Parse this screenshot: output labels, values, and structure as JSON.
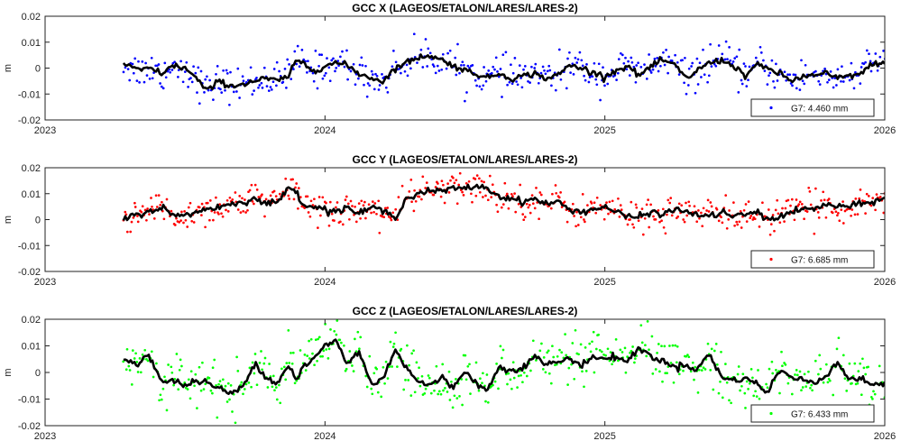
{
  "chart_data": [
    {
      "type": "scatter",
      "title": "GCC X (LAGEOS/ETALON/LARES/LARES-2)",
      "ylabel": "m",
      "xlabel": "",
      "xlim": [
        2023,
        2026
      ],
      "ylim": [
        -0.02,
        0.02
      ],
      "yticks": [
        -0.02,
        -0.01,
        0,
        0.01,
        0.02
      ],
      "ytick_labels": [
        "-0.02",
        "-0.01",
        "0",
        "0.01",
        "0.02"
      ],
      "xticks": [
        2023,
        2024,
        2025,
        2026
      ],
      "xtick_labels": [
        "2023",
        "2024",
        "2025",
        "2026"
      ],
      "legend": "G7: 4.460 mm",
      "legend_position": "bottom-right",
      "point_color": "#0000ff",
      "line_color": "#000000",
      "smooth_line": {
        "x": [
          2023.28,
          2023.33,
          2023.37,
          2023.42,
          2023.46,
          2023.5,
          2023.54,
          2023.58,
          2023.62,
          2023.67,
          2023.71,
          2023.75,
          2023.79,
          2023.83,
          2023.87,
          2023.9,
          2023.92,
          2023.96,
          2024.0,
          2024.04,
          2024.08,
          2024.12,
          2024.17,
          2024.21,
          2024.25,
          2024.29,
          2024.33,
          2024.37,
          2024.42,
          2024.46,
          2024.5,
          2024.54,
          2024.58,
          2024.62,
          2024.67,
          2024.71,
          2024.75,
          2024.79,
          2024.83,
          2024.87,
          2024.92,
          2024.96,
          2025.0,
          2025.04,
          2025.08,
          2025.12,
          2025.17,
          2025.21,
          2025.25,
          2025.29,
          2025.33,
          2025.37,
          2025.42,
          2025.46,
          2025.5,
          2025.54,
          2025.58,
          2025.62,
          2025.67,
          2025.71,
          2025.75,
          2025.79,
          2025.83,
          2025.87,
          2025.92,
          2025.96,
          2026.0
        ],
        "y": [
          0.002,
          -0.001,
          0.0,
          -0.002,
          0.001,
          0.0,
          -0.004,
          -0.009,
          -0.005,
          -0.007,
          -0.006,
          -0.005,
          -0.004,
          -0.005,
          -0.003,
          0.003,
          0.002,
          -0.001,
          0.001,
          0.002,
          0.001,
          -0.002,
          -0.004,
          -0.005,
          0.0,
          0.002,
          0.004,
          0.005,
          0.003,
          0.001,
          -0.001,
          -0.002,
          -0.004,
          -0.002,
          -0.004,
          -0.003,
          -0.002,
          -0.004,
          -0.003,
          0.001,
          0.0,
          -0.002,
          -0.003,
          -0.001,
          0.001,
          -0.003,
          0.001,
          0.003,
          0.001,
          -0.004,
          -0.001,
          0.002,
          0.003,
          0.001,
          -0.003,
          0.001,
          0.0,
          -0.002,
          -0.005,
          -0.003,
          -0.003,
          -0.002,
          -0.004,
          -0.003,
          -0.002,
          0.002,
          0.002
        ]
      },
      "noise_sd": 0.0045,
      "n_points": 520
    },
    {
      "type": "scatter",
      "title": "GCC Y (LAGEOS/ETALON/LARES/LARES-2)",
      "ylabel": "m",
      "xlabel": "",
      "xlim": [
        2023,
        2026
      ],
      "ylim": [
        -0.02,
        0.02
      ],
      "yticks": [
        -0.02,
        -0.01,
        0,
        0.01,
        0.02
      ],
      "ytick_labels": [
        "-0.02",
        "-0.01",
        "0",
        "0.01",
        "0.02"
      ],
      "xticks": [
        2023,
        2024,
        2025,
        2026
      ],
      "xtick_labels": [
        "2023",
        "2024",
        "2025",
        "2026"
      ],
      "legend": "G7: 6.685 mm",
      "legend_position": "bottom-right",
      "point_color": "#ff0000",
      "line_color": "#000000",
      "smooth_line": {
        "x": [
          2023.28,
          2023.33,
          2023.37,
          2023.42,
          2023.46,
          2023.5,
          2023.54,
          2023.58,
          2023.62,
          2023.67,
          2023.71,
          2023.75,
          2023.79,
          2023.83,
          2023.87,
          2023.9,
          2023.92,
          2023.96,
          2024.0,
          2024.04,
          2024.08,
          2024.12,
          2024.17,
          2024.21,
          2024.25,
          2024.29,
          2024.33,
          2024.37,
          2024.42,
          2024.46,
          2024.5,
          2024.54,
          2024.58,
          2024.62,
          2024.67,
          2024.71,
          2024.75,
          2024.79,
          2024.83,
          2024.87,
          2024.92,
          2024.96,
          2025.0,
          2025.04,
          2025.08,
          2025.12,
          2025.17,
          2025.21,
          2025.25,
          2025.29,
          2025.33,
          2025.37,
          2025.42,
          2025.46,
          2025.5,
          2025.54,
          2025.58,
          2025.62,
          2025.67,
          2025.71,
          2025.75,
          2025.79,
          2025.83,
          2025.87,
          2025.92,
          2025.96,
          2026.0
        ],
        "y": [
          0.0,
          0.002,
          0.003,
          0.005,
          0.001,
          0.002,
          0.003,
          0.004,
          0.005,
          0.006,
          0.007,
          0.008,
          0.006,
          0.007,
          0.012,
          0.011,
          0.006,
          0.005,
          0.004,
          0.003,
          0.005,
          0.002,
          0.005,
          0.003,
          0.001,
          0.008,
          0.01,
          0.011,
          0.011,
          0.012,
          0.012,
          0.013,
          0.012,
          0.009,
          0.008,
          0.007,
          0.008,
          0.006,
          0.007,
          0.004,
          0.003,
          0.004,
          0.005,
          0.003,
          0.001,
          0.001,
          0.003,
          0.002,
          0.004,
          0.003,
          0.002,
          0.001,
          0.003,
          0.001,
          0.002,
          0.003,
          0.0,
          0.001,
          0.003,
          0.004,
          0.004,
          0.006,
          0.005,
          0.005,
          0.006,
          0.007,
          0.008
        ]
      },
      "noise_sd": 0.0042,
      "n_points": 560
    },
    {
      "type": "scatter",
      "title": "GCC Z (LAGEOS/ETALON/LARES/LARES-2)",
      "ylabel": "m",
      "xlabel": "",
      "xlim": [
        2023,
        2026
      ],
      "ylim": [
        -0.02,
        0.02
      ],
      "yticks": [
        -0.02,
        -0.01,
        0,
        0.01,
        0.02
      ],
      "ytick_labels": [
        "-0.02",
        "-0.01",
        "0",
        "0.01",
        "0.02"
      ],
      "xticks": [
        2023,
        2024,
        2025,
        2026
      ],
      "xtick_labels": [
        "2023",
        "2024",
        "2025",
        "2026"
      ],
      "legend": "G7: 6.433 mm",
      "legend_position": "bottom-right",
      "point_color": "#00ff00",
      "line_color": "#000000",
      "smooth_line": {
        "x": [
          2023.28,
          2023.33,
          2023.37,
          2023.42,
          2023.46,
          2023.5,
          2023.54,
          2023.58,
          2023.62,
          2023.67,
          2023.71,
          2023.75,
          2023.79,
          2023.83,
          2023.87,
          2023.9,
          2023.92,
          2023.96,
          2024.0,
          2024.04,
          2024.08,
          2024.12,
          2024.17,
          2024.21,
          2024.25,
          2024.29,
          2024.33,
          2024.37,
          2024.42,
          2024.46,
          2024.5,
          2024.54,
          2024.58,
          2024.62,
          2024.67,
          2024.71,
          2024.75,
          2024.79,
          2024.83,
          2024.87,
          2024.92,
          2024.96,
          2025.0,
          2025.04,
          2025.08,
          2025.12,
          2025.17,
          2025.21,
          2025.25,
          2025.29,
          2025.33,
          2025.37,
          2025.42,
          2025.46,
          2025.5,
          2025.54,
          2025.58,
          2025.62,
          2025.67,
          2025.71,
          2025.75,
          2025.79,
          2025.83,
          2025.87,
          2025.92,
          2025.96,
          2026.0
        ],
        "y": [
          0.005,
          0.003,
          0.007,
          -0.004,
          -0.003,
          -0.005,
          -0.003,
          -0.004,
          -0.006,
          -0.008,
          -0.005,
          0.004,
          -0.002,
          -0.004,
          0.003,
          -0.003,
          0.002,
          0.005,
          0.01,
          0.012,
          0.003,
          0.008,
          -0.005,
          -0.002,
          0.009,
          0.002,
          -0.003,
          -0.005,
          -0.002,
          -0.006,
          0.001,
          -0.004,
          -0.007,
          0.002,
          0.001,
          0.002,
          0.006,
          0.003,
          0.004,
          0.005,
          0.003,
          0.006,
          0.005,
          0.006,
          0.004,
          0.009,
          0.006,
          0.004,
          0.002,
          0.003,
          0.001,
          0.007,
          -0.002,
          -0.003,
          -0.002,
          -0.004,
          -0.008,
          0.001,
          -0.002,
          -0.003,
          -0.004,
          -0.001,
          0.004,
          -0.002,
          -0.003,
          -0.004,
          -0.005
        ]
      },
      "noise_sd": 0.0058,
      "n_points": 560
    }
  ]
}
